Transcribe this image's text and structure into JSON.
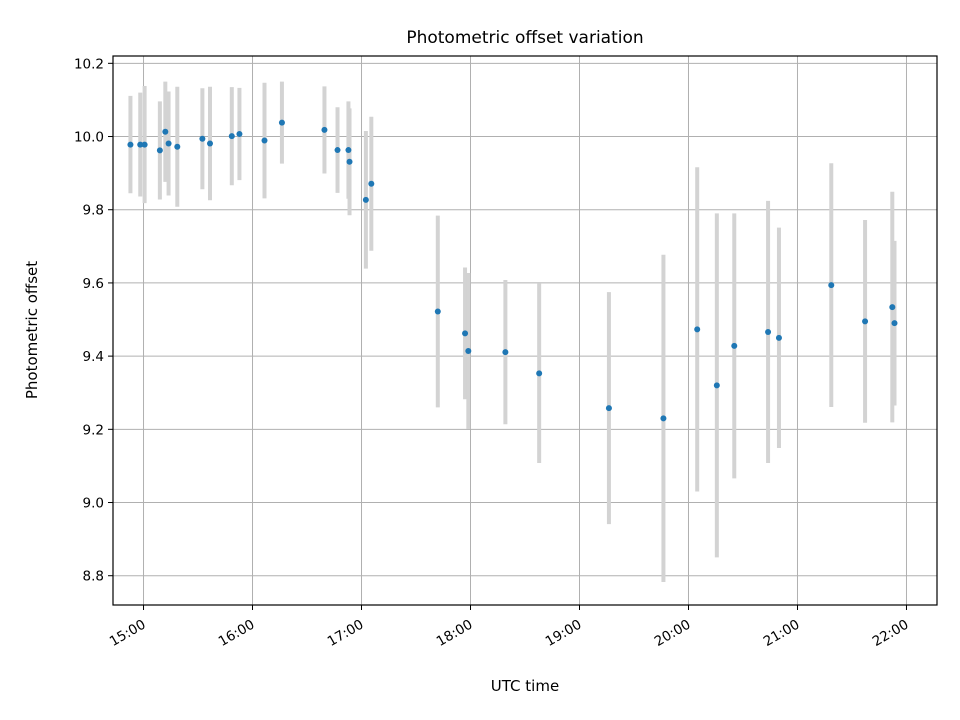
{
  "chart_data": {
    "type": "scatter",
    "title": "Photometric offset variation",
    "xlabel": "UTC time",
    "ylabel": "Photometric offset",
    "x_unit": "hour",
    "xlim": [
      14.72,
      22.28
    ],
    "ylim": [
      8.72,
      10.22
    ],
    "x_ticks": [
      {
        "value": 15,
        "label": "15:00"
      },
      {
        "value": 16,
        "label": "16:00"
      },
      {
        "value": 17,
        "label": "17:00"
      },
      {
        "value": 18,
        "label": "18:00"
      },
      {
        "value": 19,
        "label": "19:00"
      },
      {
        "value": 20,
        "label": "20:00"
      },
      {
        "value": 21,
        "label": "21:00"
      },
      {
        "value": 22,
        "label": "22:00"
      }
    ],
    "y_ticks": [
      {
        "value": 8.8,
        "label": "8.8"
      },
      {
        "value": 9.0,
        "label": "9.0"
      },
      {
        "value": 9.2,
        "label": "9.2"
      },
      {
        "value": 9.4,
        "label": "9.4"
      },
      {
        "value": 9.6,
        "label": "9.6"
      },
      {
        "value": 9.8,
        "label": "9.8"
      },
      {
        "value": 10.0,
        "label": "10.0"
      },
      {
        "value": 10.2,
        "label": "10.2"
      }
    ],
    "grid": true,
    "point_color": "#1f77b4",
    "errorbar_color": "#d3d3d3",
    "points": [
      {
        "x": 14.88,
        "y": 9.978,
        "err": 0.133
      },
      {
        "x": 14.97,
        "y": 9.978,
        "err": 0.142
      },
      {
        "x": 15.01,
        "y": 9.978,
        "err": 0.16
      },
      {
        "x": 15.15,
        "y": 9.962,
        "err": 0.134
      },
      {
        "x": 15.2,
        "y": 10.013,
        "err": 0.137
      },
      {
        "x": 15.23,
        "y": 9.981,
        "err": 0.142
      },
      {
        "x": 15.31,
        "y": 9.972,
        "err": 0.164
      },
      {
        "x": 15.54,
        "y": 9.994,
        "err": 0.138
      },
      {
        "x": 15.61,
        "y": 9.981,
        "err": 0.155
      },
      {
        "x": 15.81,
        "y": 10.001,
        "err": 0.134
      },
      {
        "x": 15.88,
        "y": 10.007,
        "err": 0.126
      },
      {
        "x": 16.11,
        "y": 9.989,
        "err": 0.158
      },
      {
        "x": 16.27,
        "y": 10.038,
        "err": 0.112
      },
      {
        "x": 16.66,
        "y": 10.018,
        "err": 0.119
      },
      {
        "x": 16.78,
        "y": 9.963,
        "err": 0.117
      },
      {
        "x": 16.88,
        "y": 9.963,
        "err": 0.133
      },
      {
        "x": 16.89,
        "y": 9.931,
        "err": 0.146
      },
      {
        "x": 17.04,
        "y": 9.827,
        "err": 0.188
      },
      {
        "x": 17.09,
        "y": 9.871,
        "err": 0.183
      },
      {
        "x": 17.7,
        "y": 9.522,
        "err": 0.262
      },
      {
        "x": 17.95,
        "y": 9.462,
        "err": 0.18
      },
      {
        "x": 17.98,
        "y": 9.414,
        "err": 0.213
      },
      {
        "x": 18.32,
        "y": 9.411,
        "err": 0.197
      },
      {
        "x": 18.63,
        "y": 9.353,
        "err": 0.245
      },
      {
        "x": 19.27,
        "y": 9.258,
        "err": 0.317
      },
      {
        "x": 19.77,
        "y": 9.23,
        "err": 0.447
      },
      {
        "x": 20.08,
        "y": 9.473,
        "err": 0.443
      },
      {
        "x": 20.26,
        "y": 9.32,
        "err": 0.47
      },
      {
        "x": 20.42,
        "y": 9.428,
        "err": 0.362
      },
      {
        "x": 20.73,
        "y": 9.466,
        "err": 0.358
      },
      {
        "x": 20.83,
        "y": 9.45,
        "err": 0.301
      },
      {
        "x": 21.31,
        "y": 9.594,
        "err": 0.333
      },
      {
        "x": 21.62,
        "y": 9.495,
        "err": 0.277
      },
      {
        "x": 21.87,
        "y": 9.534,
        "err": 0.315
      },
      {
        "x": 21.89,
        "y": 9.49,
        "err": 0.225
      }
    ]
  }
}
